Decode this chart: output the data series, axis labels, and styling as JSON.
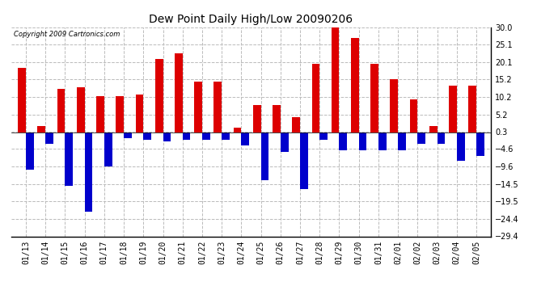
{
  "title": "Dew Point Daily High/Low 20090206",
  "copyright": "Copyright 2009 Cartronics.com",
  "labels": [
    "01/13",
    "01/14",
    "01/15",
    "01/16",
    "01/17",
    "01/18",
    "01/19",
    "01/20",
    "01/21",
    "01/22",
    "01/23",
    "01/24",
    "01/25",
    "01/26",
    "01/27",
    "01/28",
    "01/29",
    "01/30",
    "01/31",
    "02/01",
    "02/02",
    "02/03",
    "02/04",
    "02/05"
  ],
  "highs": [
    18.5,
    2.0,
    12.5,
    13.0,
    10.5,
    10.5,
    11.0,
    21.0,
    22.5,
    14.5,
    14.5,
    1.5,
    8.0,
    8.0,
    4.5,
    19.5,
    30.0,
    27.0,
    19.5,
    15.2,
    9.5,
    2.0,
    13.5,
    13.5
  ],
  "lows": [
    -10.5,
    -3.0,
    -15.0,
    -22.5,
    -9.5,
    -1.5,
    -2.0,
    -2.5,
    -2.0,
    -2.0,
    -2.0,
    -3.5,
    -13.5,
    -5.5,
    -16.0,
    -2.0,
    -5.0,
    -5.0,
    -5.0,
    -5.0,
    -3.0,
    -3.0,
    -8.0,
    -6.5
  ],
  "high_color": "#dd0000",
  "low_color": "#0000cc",
  "bg_color": "#ffffff",
  "ylim": [
    -29.4,
    30.0
  ],
  "yticks": [
    30.0,
    25.1,
    20.1,
    15.2,
    10.2,
    5.2,
    0.3,
    -4.6,
    -9.6,
    -14.5,
    -19.5,
    -24.4,
    -29.4
  ],
  "bar_width": 0.4,
  "figwidth": 6.9,
  "figheight": 3.75,
  "dpi": 100
}
